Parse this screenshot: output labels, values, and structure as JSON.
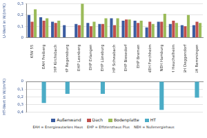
{
  "chart_data": [
    {
      "type": "bar",
      "y_label": "U-Wert in W/(m²K)",
      "categories": [
        "KfW 55",
        "EAH Freiberg",
        "EHP Kirchsbach",
        "EHP Regensburg",
        "EHP Leonberg",
        "EHP Erlangen",
        "EHP Lüneburg",
        "EHP Schwabach",
        "EHP Biesedorf",
        "EHP Bremen",
        "NEH Forchheim",
        "NEH Hamburg",
        "PH Heuchelheim",
        "SH Deggendorf",
        "SH Remmingen"
      ],
      "series": [
        {
          "name": "Außenwand",
          "color": "#3b5ca0",
          "values": [
            0.2,
            0.18,
            0.14,
            0.11,
            0.12,
            0.13,
            0.12,
            0.17,
            0.15,
            0.15,
            0.09,
            0.14,
            0.12,
            0.11,
            0.11
          ]
        },
        {
          "name": "Dach",
          "color": "#c0504d",
          "values": [
            0.14,
            0.15,
            0.13,
            null,
            0.11,
            0.1,
            0.12,
            0.11,
            0.16,
            0.13,
            0.14,
            0.14,
            0.15,
            0.1,
            0.14
          ]
        },
        {
          "name": "Bodenplatte",
          "color": "#9bbb59",
          "values": [
            0.25,
            0.17,
            0.15,
            null,
            0.3,
            0.14,
            0.17,
            0.17,
            0.16,
            0.15,
            0.12,
            0.21,
            0.13,
            0.2,
            0.13
          ]
        }
      ],
      "ylim": [
        0,
        0.3
      ],
      "yticks": [
        0,
        {
          "value": 0.1,
          "label": "0,1"
        },
        {
          "value": 0.2,
          "label": "0,2"
        },
        {
          "value": 0.3,
          "label": "0,3"
        }
      ],
      "grid": true
    },
    {
      "type": "bar",
      "y_label": "HT-Wert in W/(m²K)",
      "categories": [
        "KfW 55",
        "EAH Freiberg",
        "EHP Kirchsbach",
        "EHP Regensburg",
        "EHP Leonberg",
        "EHP Erlangen",
        "EHP Lüneburg",
        "EHP Schwabach",
        "EHP Biesedorf",
        "EHP Bremen",
        "NEH Forchheim",
        "NEH Hamburg",
        "PH Heuchelheim",
        "SH Deggendorf",
        "SH Remmingen"
      ],
      "series": [
        {
          "name": "HT",
          "color": "#4bacc6",
          "values": [
            null,
            0.28,
            null,
            0.16,
            null,
            null,
            0.16,
            null,
            null,
            null,
            null,
            0.37,
            null,
            null,
            0.21
          ]
        }
      ],
      "ylim": [
        0.4,
        0
      ],
      "yticks": [
        0,
        {
          "value": 0.1,
          "label": "0,1"
        },
        {
          "value": 0.2,
          "label": "0,2"
        },
        {
          "value": 0.3,
          "label": "0,3"
        },
        {
          "value": 0.4,
          "label": "0,4"
        }
      ],
      "grid": true,
      "tick_labels": "y",
      "legend": "bottom",
      "annotations": [
        "EAH = Energieautarkes Haus",
        "EHP = Effizienzhaus Plus",
        "NEH = Nullenergiehaus"
      ]
    }
  ]
}
